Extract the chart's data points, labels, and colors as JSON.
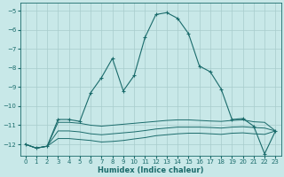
{
  "background_color": "#c8e8e8",
  "grid_color": "#a8cccc",
  "line_color": "#1a6b6b",
  "xlabel": "Humidex (Indice chaleur)",
  "xlim": [
    -0.5,
    23.5
  ],
  "ylim": [
    -12.6,
    -4.6
  ],
  "yticks": [
    -12,
    -11,
    -10,
    -9,
    -8,
    -7,
    -6,
    -5
  ],
  "xticks": [
    0,
    1,
    2,
    3,
    4,
    5,
    6,
    7,
    8,
    9,
    10,
    11,
    12,
    13,
    14,
    15,
    16,
    17,
    18,
    19,
    20,
    21,
    22,
    23
  ],
  "x": [
    0,
    1,
    2,
    3,
    4,
    5,
    6,
    7,
    8,
    9,
    10,
    11,
    12,
    13,
    14,
    15,
    16,
    17,
    18,
    19,
    20,
    21,
    22,
    23
  ],
  "main_curve": [
    -12.0,
    -12.2,
    -12.1,
    -10.7,
    -10.7,
    -10.8,
    -9.3,
    -8.5,
    -7.5,
    -9.2,
    -8.4,
    -6.4,
    -5.2,
    -5.1,
    -5.4,
    -6.2,
    -7.9,
    -8.2,
    -9.1,
    -10.7,
    -10.65,
    -11.05,
    -12.5,
    -11.3
  ],
  "flat1": [
    -12.0,
    -12.2,
    -12.1,
    -10.85,
    -10.85,
    -10.9,
    -11.0,
    -11.05,
    -11.0,
    -10.95,
    -10.9,
    -10.85,
    -10.8,
    -10.75,
    -10.72,
    -10.72,
    -10.75,
    -10.78,
    -10.8,
    -10.75,
    -10.72,
    -10.82,
    -10.85,
    -11.3
  ],
  "flat2": [
    -12.0,
    -12.2,
    -12.1,
    -11.3,
    -11.3,
    -11.35,
    -11.45,
    -11.5,
    -11.45,
    -11.4,
    -11.35,
    -11.28,
    -11.2,
    -11.15,
    -11.1,
    -11.1,
    -11.1,
    -11.12,
    -11.15,
    -11.1,
    -11.08,
    -11.12,
    -11.15,
    -11.3
  ],
  "flat3": [
    -12.0,
    -12.2,
    -12.1,
    -11.7,
    -11.7,
    -11.75,
    -11.8,
    -11.88,
    -11.85,
    -11.8,
    -11.72,
    -11.65,
    -11.55,
    -11.5,
    -11.45,
    -11.42,
    -11.42,
    -11.45,
    -11.48,
    -11.42,
    -11.4,
    -11.45,
    -11.48,
    -11.3
  ]
}
